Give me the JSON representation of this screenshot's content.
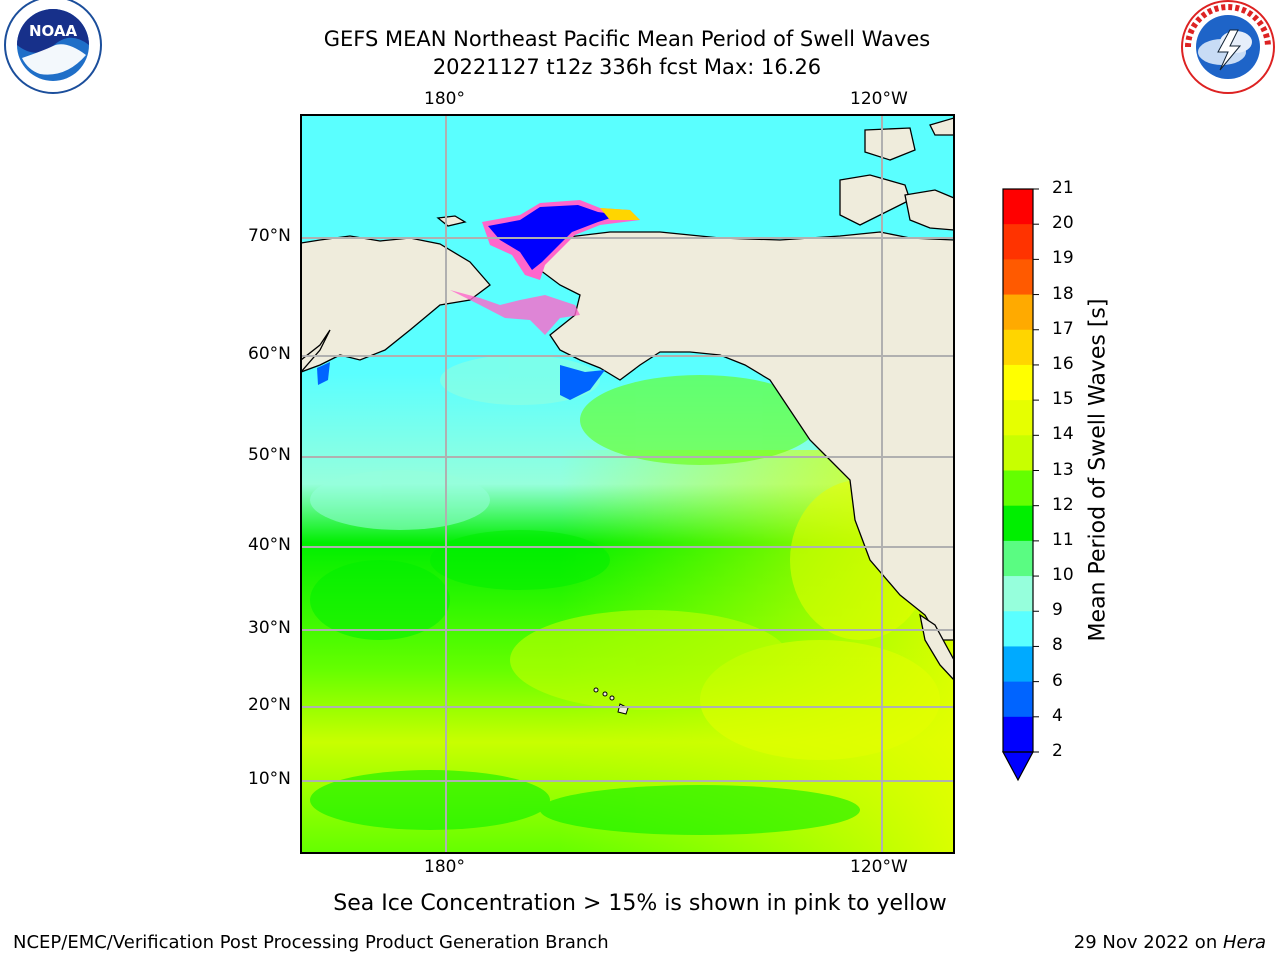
{
  "header": {
    "title": "GEFS MEAN Northeast Pacific Mean Period of Swell Waves",
    "subtitle": "20221127 t12z 336h fcst   Max: 16.26"
  },
  "logos": {
    "left": {
      "icon": "noaa-logo-icon",
      "text": "NOAA",
      "ring_text": "NATIONAL OCEANIC AND ATMOSPHERIC ADMINISTRATION · U.S. DEPARTMENT OF COMMERCE"
    },
    "right": {
      "icon": "nws-logo-icon",
      "ring_text": "NATIONAL WEATHER SERVICE"
    }
  },
  "map": {
    "lon_ticks_top": [
      "180°",
      "120°W"
    ],
    "lon_ticks_bottom": [
      "180°",
      "120°W"
    ],
    "lat_ticks": [
      "70°N",
      "60°N",
      "50°N",
      "40°N",
      "30°N",
      "20°N",
      "10°N"
    ],
    "land_color": "#efecdc",
    "grid_color": "#b0b0b0"
  },
  "colorbar": {
    "label": "Mean Period of Swell Waves [s]",
    "ticks": [
      "21",
      "20",
      "19",
      "18",
      "17",
      "16",
      "15",
      "14",
      "13",
      "12",
      "11",
      "10",
      "9",
      "8",
      "6",
      "4",
      "2"
    ],
    "colors": [
      "#ff0000",
      "#ff3300",
      "#ff5a00",
      "#ff7f00",
      "#ffaa00",
      "#ffd500",
      "#ffff00",
      "#e6ff00",
      "#c8ff00",
      "#96ff00",
      "#64ff00",
      "#00ef00",
      "#5afc82",
      "#96ffdc",
      "#5affff",
      "#00ffff",
      "#00aaff",
      "#0064ff",
      "#0000ff"
    ],
    "extend_color": "#0000ff"
  },
  "note": "Sea Ice Concentration > 15% is shown in pink to yellow",
  "footer": {
    "left": "NCEP/EMC/Verification Post Processing Product Generation Branch",
    "right_date": "29 Nov 2022 on ",
    "right_host": "Hera"
  }
}
